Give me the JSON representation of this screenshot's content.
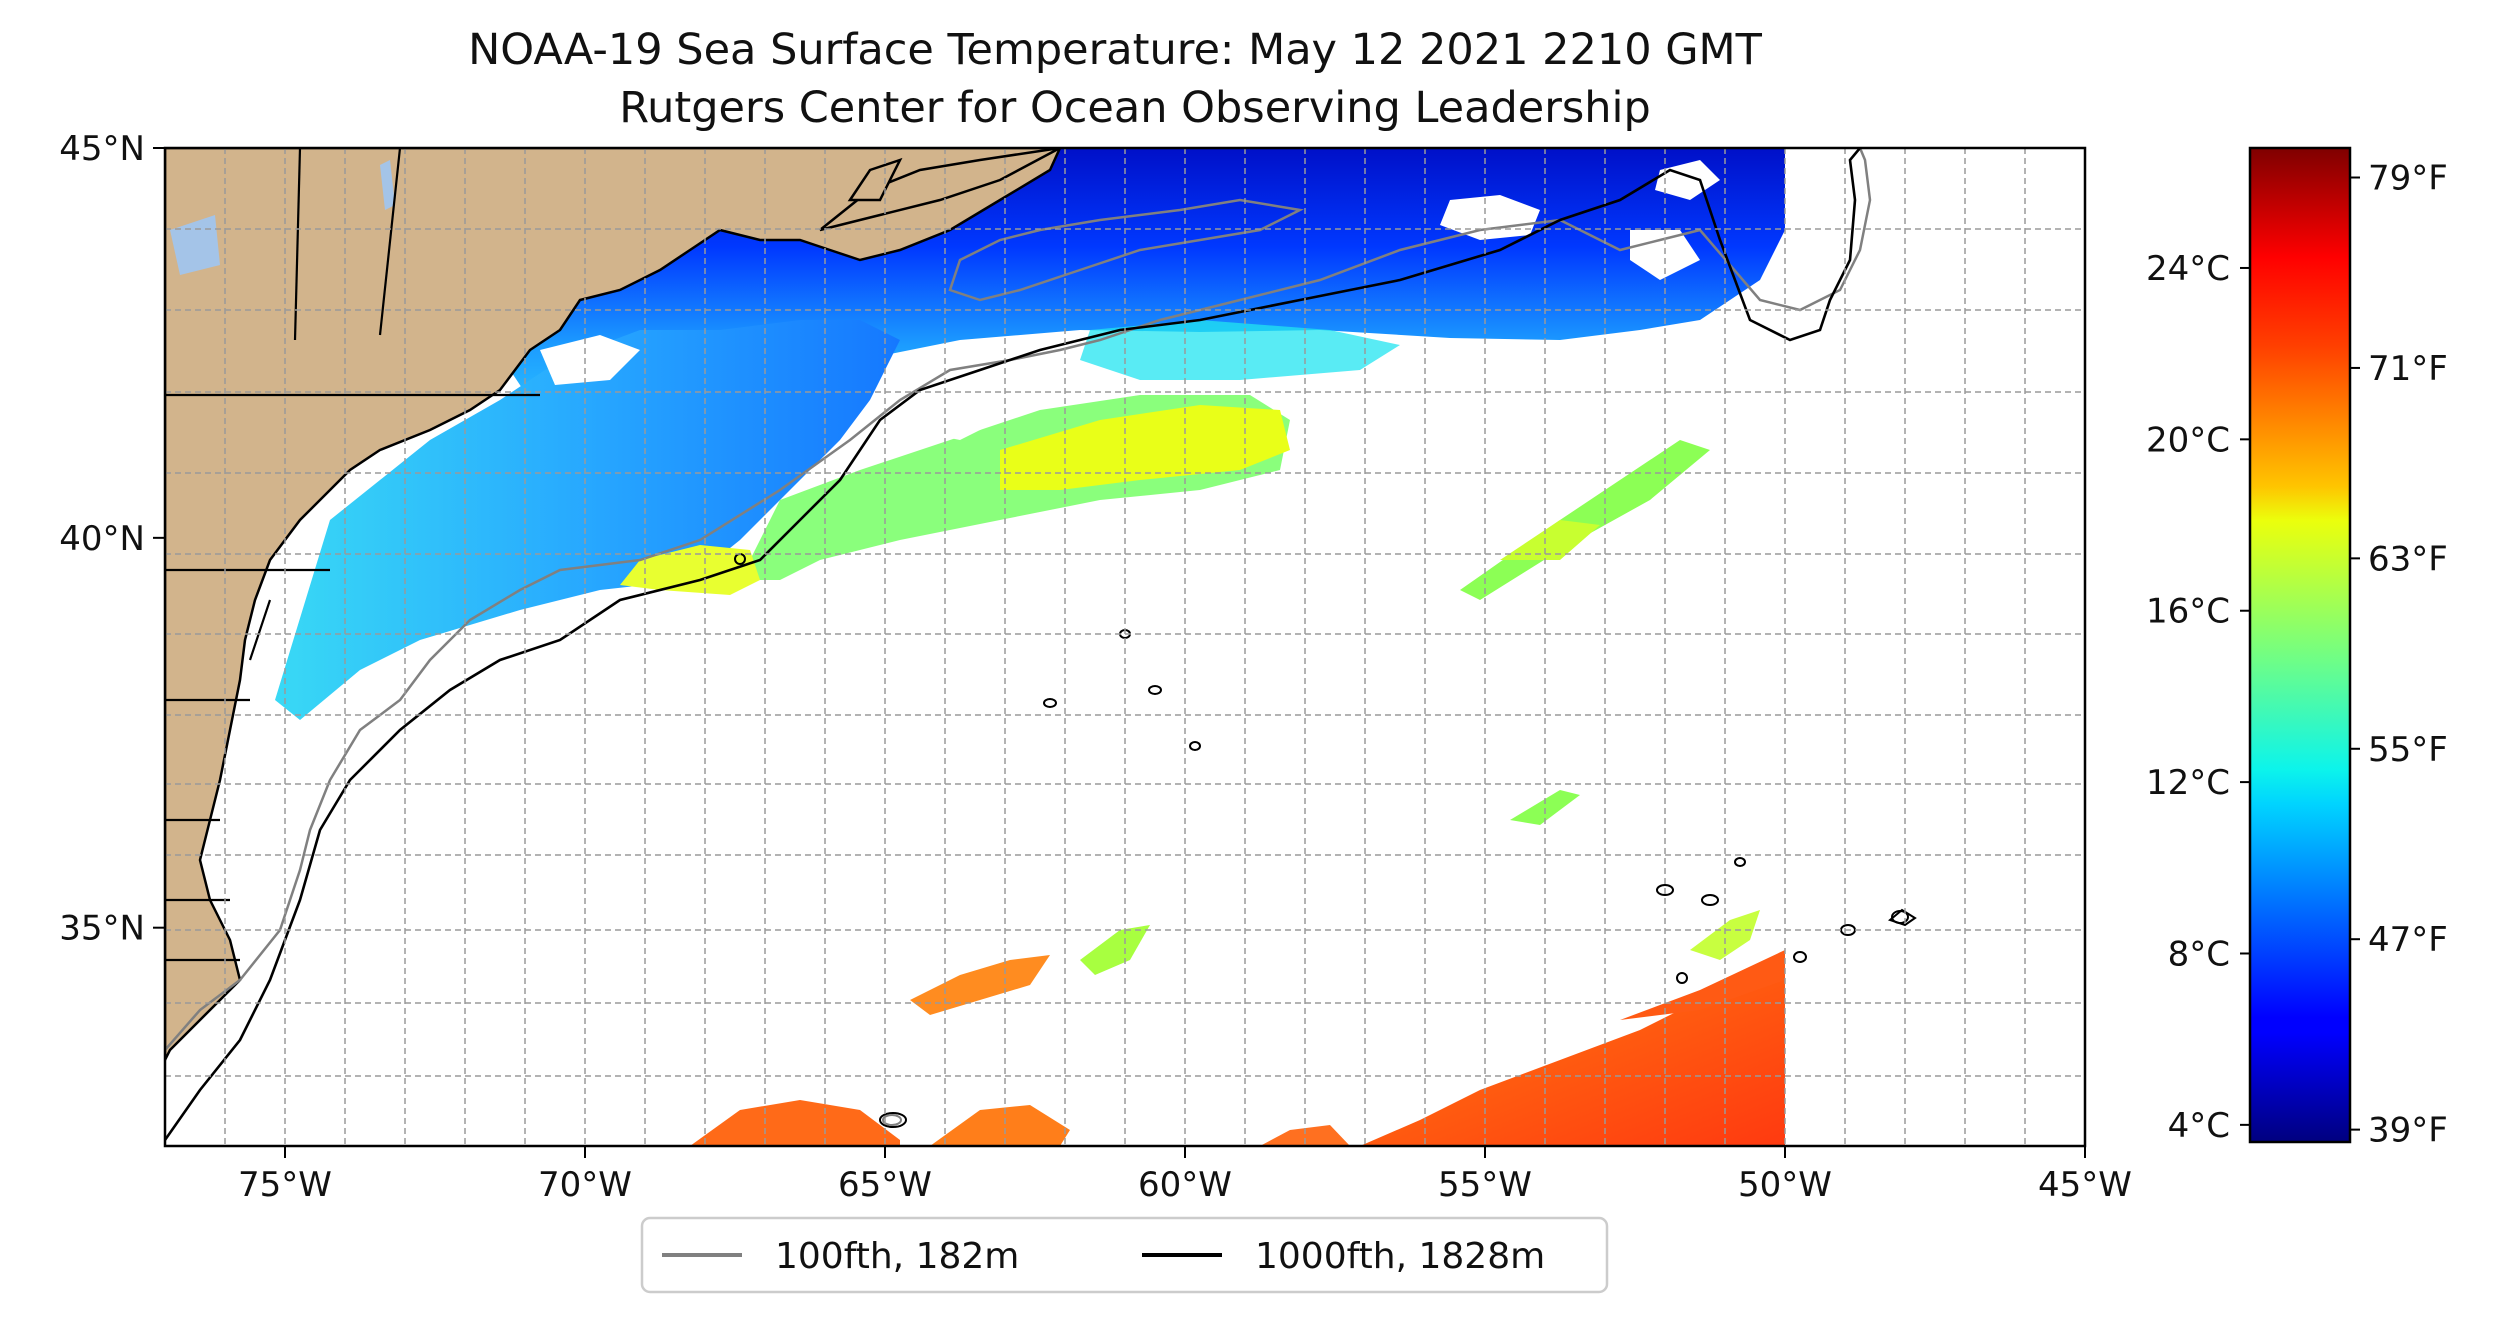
{
  "title": "NOAA-19 Sea Surface Temperature: May 12 2021 2210 GMT",
  "subtitle": "Rutgers Center for Ocean Observing Leadership",
  "map": {
    "lon_range": [
      -77,
      -45
    ],
    "lat_range": [
      32.2,
      45
    ],
    "x_ticks": [
      {
        "lon": -75,
        "label": "75°W"
      },
      {
        "lon": -70,
        "label": "70°W"
      },
      {
        "lon": -65,
        "label": "65°W"
      },
      {
        "lon": -60,
        "label": "60°W"
      },
      {
        "lon": -55,
        "label": "55°W"
      },
      {
        "lon": -50,
        "label": "50°W"
      },
      {
        "lon": -45,
        "label": "45°W"
      }
    ],
    "y_ticks": [
      {
        "lat": 45,
        "label": "45°N"
      },
      {
        "lat": 40,
        "label": "40°N"
      },
      {
        "lat": 35,
        "label": "35°N"
      }
    ],
    "grid": true,
    "land_color": "#d2b48c",
    "water_body_color": "#a4c4e8",
    "no_data_color": "#ffffff"
  },
  "colorbar": {
    "colormap": "jet",
    "celsius_ticks": [
      {
        "value": 24,
        "label": "24°C"
      },
      {
        "value": 20,
        "label": "20°C"
      },
      {
        "value": 16,
        "label": "16°C"
      },
      {
        "value": 12,
        "label": "12°C"
      },
      {
        "value": 8,
        "label": "8°C"
      },
      {
        "value": 4,
        "label": "4°C"
      }
    ],
    "fahrenheit_ticks": [
      {
        "value": 79,
        "label": "79°F"
      },
      {
        "value": 71,
        "label": "71°F"
      },
      {
        "value": 63,
        "label": "63°F"
      },
      {
        "value": 55,
        "label": "55°F"
      },
      {
        "value": 47,
        "label": "47°F"
      },
      {
        "value": 39,
        "label": "39°F"
      }
    ]
  },
  "legend": {
    "placement": "bottom-center",
    "items": [
      {
        "label": "100fth, 182m",
        "color": "#808080"
      },
      {
        "label": "1000fth, 1828m",
        "color": "#000000"
      }
    ]
  }
}
